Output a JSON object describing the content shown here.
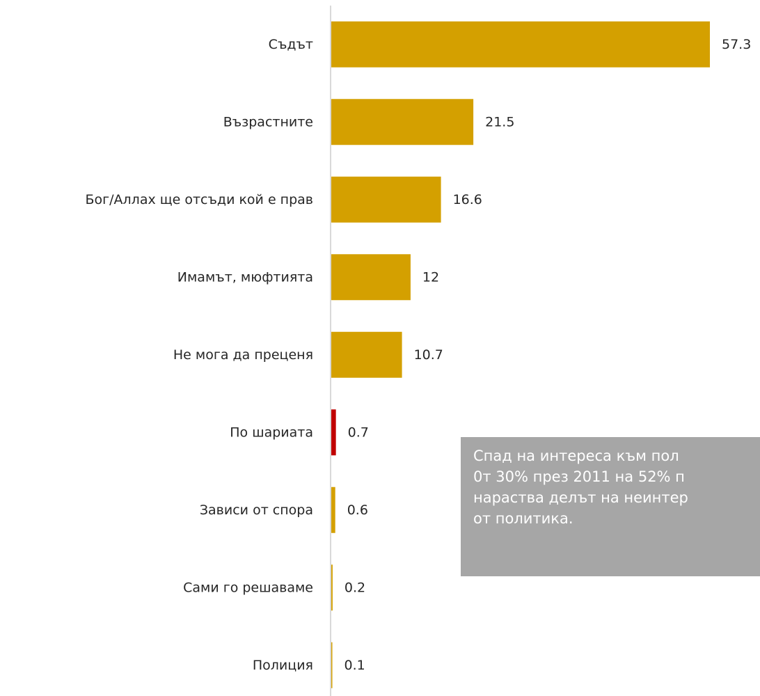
{
  "chart_data": {
    "type": "bar",
    "orientation": "horizontal",
    "title": "",
    "xlabel": "",
    "ylabel": "",
    "categories": [
      "Съдът",
      "Възрастните",
      "Бог/Аллах ще отсъди кой е прав",
      "Имамът, мюфтията",
      "Не мога да преценя",
      "По шариата",
      "Зависи от спора",
      "Сами го решаваме",
      "Полиция"
    ],
    "values": [
      57.3,
      21.5,
      16.6,
      12,
      10.7,
      0.7,
      0.6,
      0.2,
      0.1
    ],
    "data_labels": [
      "57.3",
      "21.5",
      "16.6",
      "12",
      "10.7",
      "0.7",
      "0.6",
      "0.2",
      "0.1"
    ],
    "bar_colors": [
      "#d4a000",
      "#d4a000",
      "#d4a000",
      "#d4a000",
      "#d4a000",
      "#c00000",
      "#d4a000",
      "#d4a000",
      "#d4a000"
    ],
    "xlim": [
      0,
      60
    ],
    "grid": false,
    "legend": "none"
  },
  "annotation": {
    "lines": [
      "Спад на интереса към пол",
      "0т 30% през 2011 на 52% п",
      "нараства делът на неинтер",
      "от политика."
    ]
  },
  "colors": {
    "bar": "#d4a000",
    "highlight_bar": "#c00000",
    "axis": "#d9d9d9",
    "annotation_background": "#a6a6a6",
    "annotation_text": "#ffffff",
    "label_text": "#262626"
  }
}
